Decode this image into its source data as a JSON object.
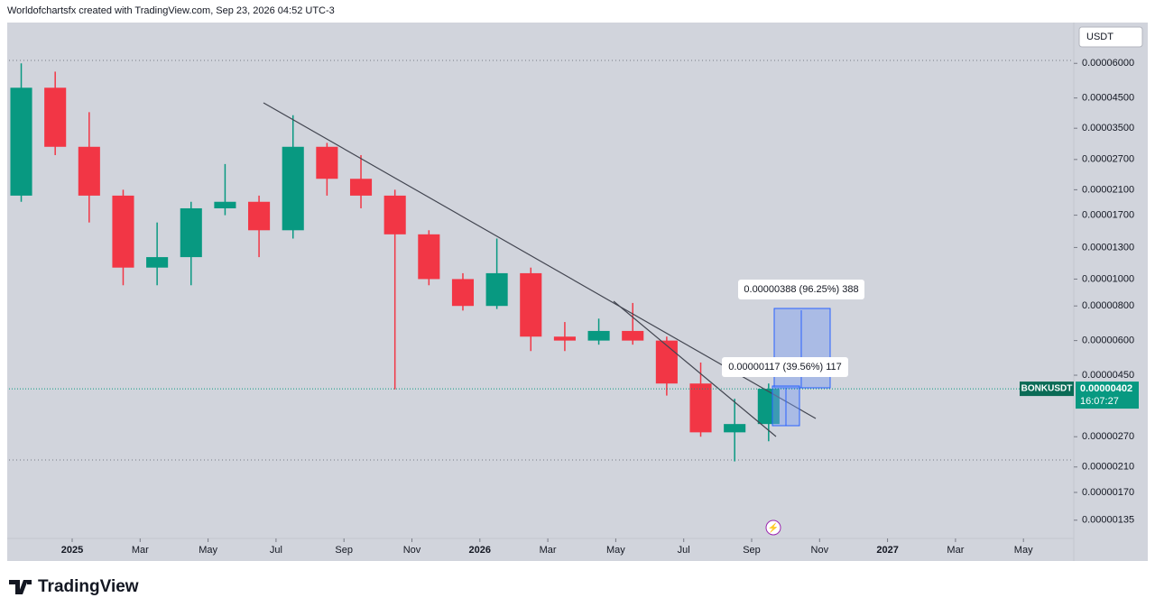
{
  "header": "Worldofchartsfx created with TradingView.com, Sep 23, 2026 04:52 UTC-3",
  "logo": "TradingView",
  "chart_data": {
    "type": "candlestick",
    "currency": "USDT",
    "symbol": "BONKUSDT",
    "last_price": 4.02e-06,
    "countdown": "16:07:27",
    "log_scale": true,
    "up_color": "#089981",
    "down_color": "#f23645",
    "annotations": [
      "0.00000388 (96.25%) 388",
      "0.00000117 (39.56%) 117"
    ],
    "x": [
      "2024-11",
      "2024-12",
      "2025-01",
      "2025-02",
      "2025-03",
      "2025-04",
      "2025-05",
      "2025-06",
      "2025-07",
      "2025-08",
      "2025-09",
      "2025-10",
      "2025-11",
      "2025-12",
      "2026-01",
      "2026-02",
      "2026-03",
      "2026-04",
      "2026-05",
      "2026-06",
      "2026-07",
      "2026-08",
      "2026-09"
    ],
    "open": [
      2e-05,
      4.9e-05,
      3e-05,
      2e-05,
      1.1e-05,
      1.2e-05,
      1.8e-05,
      1.9e-05,
      1.5e-05,
      3e-05,
      2.3e-05,
      2e-05,
      1.45e-05,
      1e-05,
      8e-06,
      1.05e-05,
      6.2e-06,
      6e-06,
      6.5e-06,
      6e-06,
      4.2e-06,
      2.8e-06,
      3e-06
    ],
    "high": [
      6e-05,
      5.6e-05,
      4e-05,
      2.1e-05,
      1.6e-05,
      1.9e-05,
      2.6e-05,
      2e-05,
      3.9e-05,
      3.1e-05,
      2.8e-05,
      2.1e-05,
      1.5e-05,
      1.05e-05,
      1.4e-05,
      1.1e-05,
      7e-06,
      7.2e-06,
      8.2e-06,
      6.2e-06,
      5e-06,
      3.7e-06,
      4.2e-06
    ],
    "low": [
      1.9e-05,
      2.8e-05,
      1.6e-05,
      9.5e-06,
      9.5e-06,
      9.5e-06,
      1.7e-05,
      1.2e-05,
      1.4e-05,
      2e-05,
      1.8e-05,
      4e-06,
      9.5e-06,
      7.7e-06,
      7.8e-06,
      5.5e-06,
      5.5e-06,
      5.8e-06,
      5.8e-06,
      3.8e-06,
      2.7e-06,
      2.2e-06,
      2.6e-06
    ],
    "close": [
      4.9e-05,
      3e-05,
      2e-05,
      1.1e-05,
      1.2e-05,
      1.8e-05,
      1.9e-05,
      1.5e-05,
      3e-05,
      2.3e-05,
      2e-05,
      1.45e-05,
      1e-05,
      8e-06,
      1.05e-05,
      6.2e-06,
      6e-06,
      6.5e-06,
      6e-06,
      4.2e-06,
      2.8e-06,
      3e-06,
      4.02e-06
    ],
    "ylim": [
      1.16e-06,
      8.42e-05
    ],
    "yticks": [
      {
        "value": 6e-05,
        "label": "0.00006000"
      },
      {
        "value": 4.5e-05,
        "label": "0.00004500"
      },
      {
        "value": 3.5e-05,
        "label": "0.00003500"
      },
      {
        "value": 2.7e-05,
        "label": "0.00002700"
      },
      {
        "value": 2.1e-05,
        "label": "0.00002100"
      },
      {
        "value": 1.7e-05,
        "label": "0.00001700"
      },
      {
        "value": 1.3e-05,
        "label": "0.00001300"
      },
      {
        "value": 1e-05,
        "label": "0.00001000"
      },
      {
        "value": 8e-06,
        "label": "0.00000800"
      },
      {
        "value": 6e-06,
        "label": "0.00000600"
      },
      {
        "value": 4.5e-06,
        "label": "0.00000450"
      },
      {
        "value": 2.7e-06,
        "label": "0.00000270"
      },
      {
        "value": 2.1e-06,
        "label": "0.00000210"
      },
      {
        "value": 1.7e-06,
        "label": "0.00000170"
      },
      {
        "value": 1.35e-06,
        "label": "0.00000135"
      }
    ],
    "xticks": [
      {
        "value": "2025-01",
        "label": "2025"
      },
      {
        "value": "2025-03",
        "label": "Mar"
      },
      {
        "value": "2025-05",
        "label": "May"
      },
      {
        "value": "2025-07",
        "label": "Jul"
      },
      {
        "value": "2025-09",
        "label": "Sep"
      },
      {
        "value": "2025-11",
        "label": "Nov"
      },
      {
        "value": "2026-01",
        "label": "2026"
      },
      {
        "value": "2026-03",
        "label": "Mar"
      },
      {
        "value": "2026-05",
        "label": "May"
      },
      {
        "value": "2026-07",
        "label": "Jul"
      },
      {
        "value": "2026-09",
        "label": "Sep"
      },
      {
        "value": "2026-11",
        "label": "Nov"
      },
      {
        "value": "2027-01",
        "label": "2027"
      },
      {
        "value": "2027-03",
        "label": "Mar"
      },
      {
        "value": "2027-05",
        "label": "May"
      }
    ]
  }
}
